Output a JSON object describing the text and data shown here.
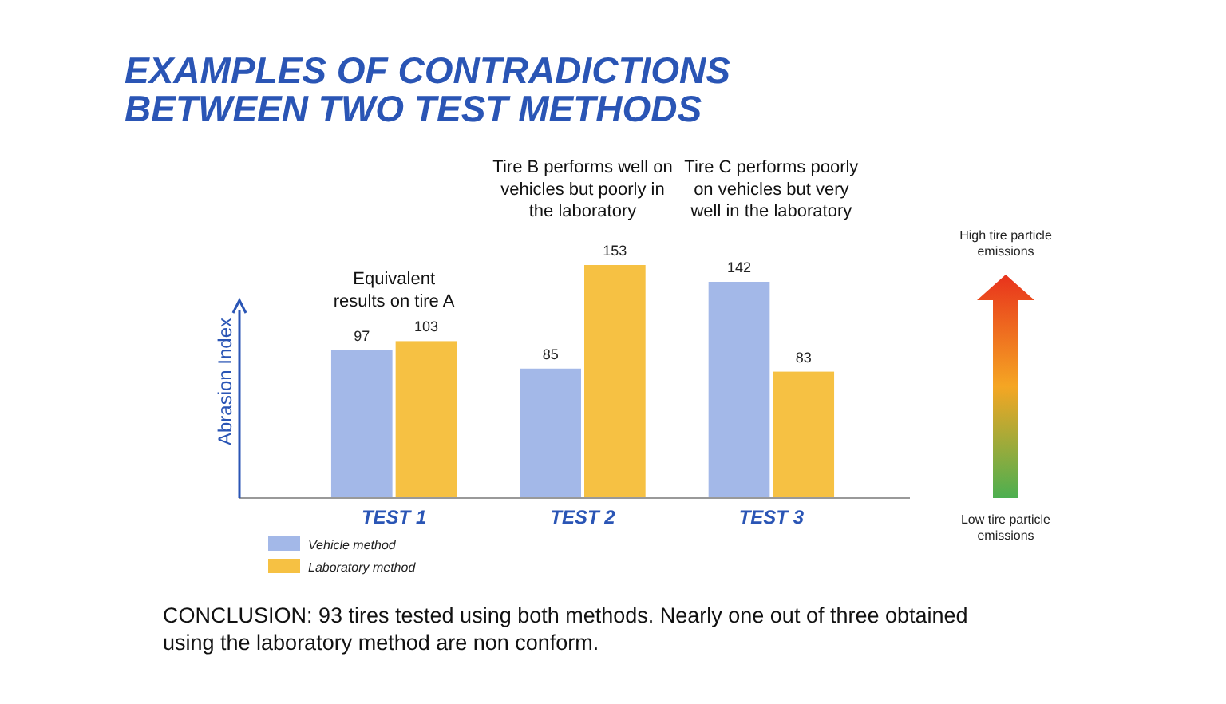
{
  "chart_data": {
    "type": "bar",
    "title": "EXAMPLES OF CONTRADICTIONS\nBETWEEN TWO TEST METHODS",
    "ylabel": "Abrasion Index",
    "categories": [
      "TEST 1",
      "TEST 2",
      "TEST 3"
    ],
    "series": [
      {
        "name": "Vehicle method",
        "color": "#a3b8e8",
        "values": [
          97,
          85,
          142
        ]
      },
      {
        "name": "Laboratory method",
        "color": "#f6c143",
        "values": [
          103,
          153,
          83
        ]
      }
    ],
    "tick_labels": "x",
    "data_labels": true,
    "legend": "bottom left",
    "annotations": [
      "Equivalent\nresults on tire A",
      "Tire B performs well on\nvehicles but poorly in\nthe laboratory",
      "Tire C performs poorly\non vehicles but very\nwell in the laboratory",
      "High tire particle\nemissions",
      "Low tire particle\nemissions",
      "CONCLUSION: 93 tires tested using both methods. Nearly one out of three obtained\nusing the laboratory method are non conform."
    ]
  }
}
